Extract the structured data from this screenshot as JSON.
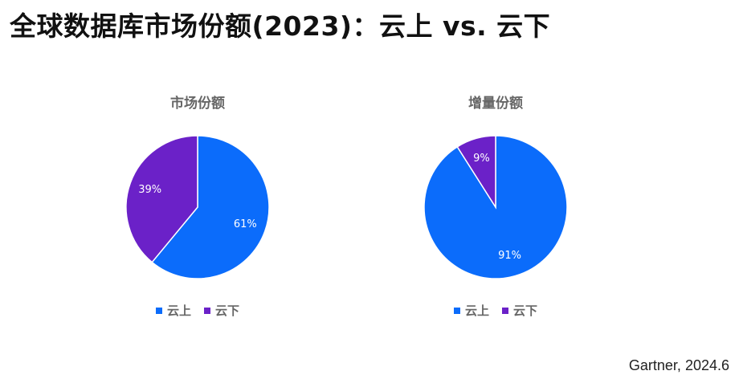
{
  "page": {
    "title": "全球数据库市场份额(2023)：云上 vs. 云下",
    "source": "Gartner, 2024.6"
  },
  "colors": {
    "cloud": "#0b6cfb",
    "onprem": "#6b21c8"
  },
  "chart_data": [
    {
      "type": "pie",
      "title": "市场份额",
      "series": [
        {
          "name": "云上",
          "value": 61,
          "label": "61%",
          "color": "#0b6cfb"
        },
        {
          "name": "云下",
          "value": 39,
          "label": "39%",
          "color": "#6b21c8"
        }
      ],
      "legend": [
        "云上",
        "云下"
      ],
      "legend_position": "bottom"
    },
    {
      "type": "pie",
      "title": "增量份额",
      "series": [
        {
          "name": "云上",
          "value": 91,
          "label": "91%",
          "color": "#0b6cfb"
        },
        {
          "name": "云下",
          "value": 9,
          "label": "9%",
          "color": "#6b21c8"
        }
      ],
      "legend": [
        "云上",
        "云下"
      ],
      "legend_position": "bottom"
    }
  ]
}
